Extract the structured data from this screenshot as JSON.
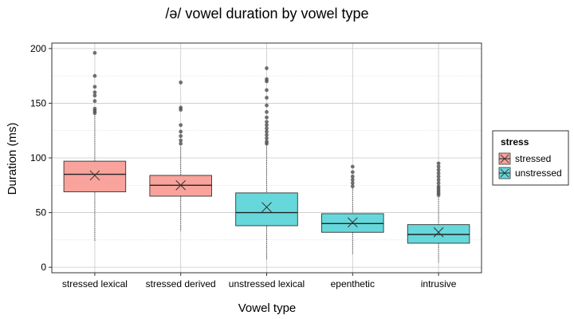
{
  "chart_data": {
    "type": "boxplot",
    "title": "/ə/ vowel duration by vowel type",
    "xlabel": "Vowel type",
    "ylabel": "Duration (ms)",
    "ylim": [
      -5,
      205
    ],
    "yticks": [
      0,
      50,
      100,
      150,
      200
    ],
    "grid": true,
    "legend": {
      "title": "stress",
      "position": "right",
      "entries": [
        {
          "label": "stressed",
          "color": "#f8a39c"
        },
        {
          "label": "unstressed",
          "color": "#66d8dc"
        }
      ]
    },
    "categories": [
      "stressed lexical",
      "stressed derived",
      "unstressed lexical",
      "epenthetic",
      "intrusive"
    ],
    "boxes": [
      {
        "category": "stressed lexical",
        "stress": "stressed",
        "whisker_low": 24,
        "q1": 69,
        "median": 85,
        "q3": 97,
        "whisker_high": 140,
        "mean": 84,
        "outliers": [
          141,
          143,
          145,
          152,
          157,
          160,
          165,
          175,
          196
        ]
      },
      {
        "category": "stressed derived",
        "stress": "stressed",
        "whisker_low": 33,
        "q1": 65,
        "median": 75,
        "q3": 84,
        "whisker_high": 110,
        "mean": 75,
        "outliers": [
          113,
          116,
          120,
          124,
          130,
          144,
          146,
          169
        ]
      },
      {
        "category": "unstressed lexical",
        "stress": "unstressed",
        "whisker_low": 7,
        "q1": 38,
        "median": 50,
        "q3": 68,
        "whisker_high": 112,
        "mean": 55,
        "outliers": [
          113,
          115,
          118,
          121,
          124,
          127,
          130,
          133,
          137,
          142,
          148,
          155,
          162,
          170,
          172,
          182
        ]
      },
      {
        "category": "epenthetic",
        "stress": "unstressed",
        "whisker_low": 12,
        "q1": 32,
        "median": 40,
        "q3": 49,
        "whisker_high": 72,
        "mean": 41,
        "outliers": [
          74,
          77,
          80,
          83,
          87,
          92
        ]
      },
      {
        "category": "intrusive",
        "stress": "unstressed",
        "whisker_low": 4,
        "q1": 22,
        "median": 30,
        "q3": 39,
        "whisker_high": 64,
        "mean": 32,
        "outliers": [
          66,
          68,
          70,
          72,
          74,
          77,
          80,
          83,
          86,
          89,
          92,
          95
        ]
      }
    ]
  }
}
